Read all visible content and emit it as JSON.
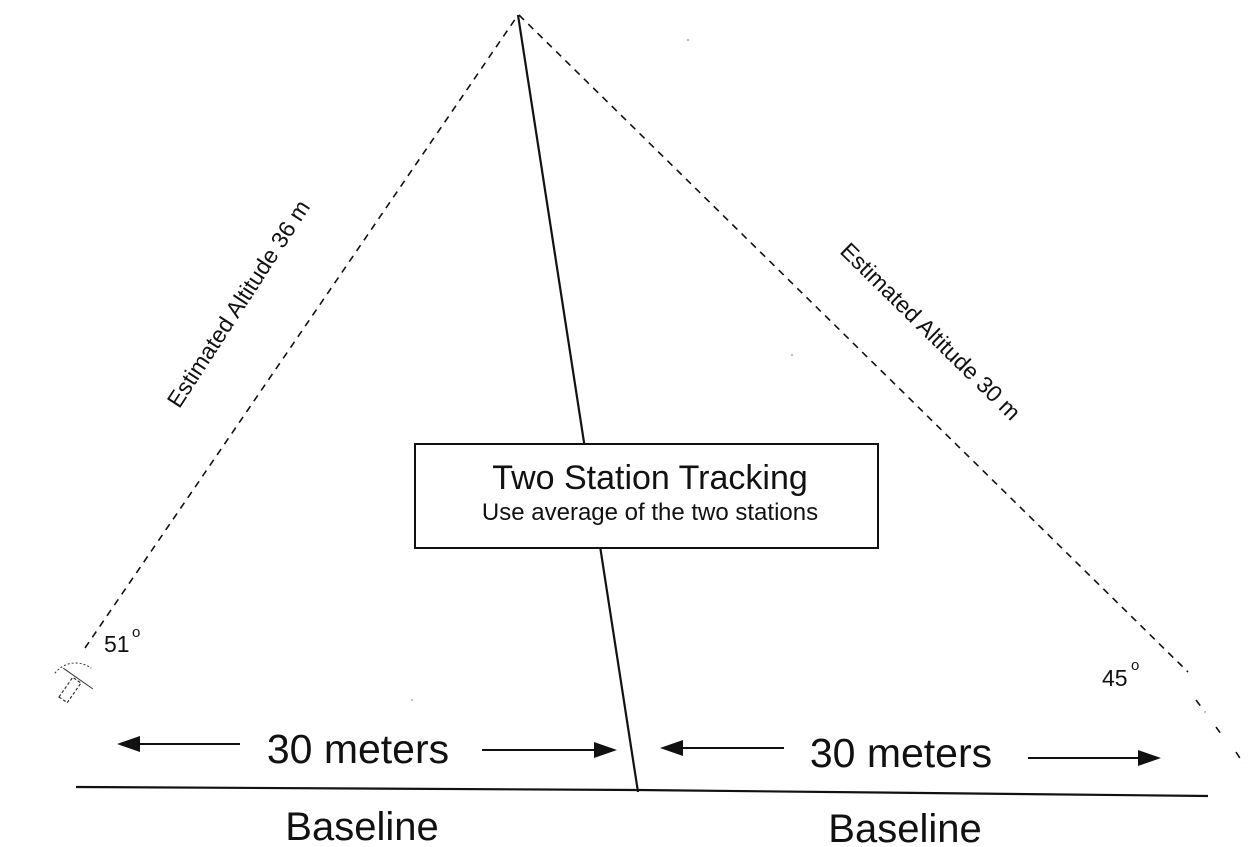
{
  "left_station": {
    "altitude_label": "Estimated Altitude 36 m",
    "angle": "51",
    "angle_unit": "o",
    "distance_label": "30 meters",
    "baseline_label": "Baseline"
  },
  "right_station": {
    "altitude_label": "Estimated Altitude 30 m",
    "angle": "45",
    "angle_unit": "o",
    "distance_label": "30 meters",
    "baseline_label": "Baseline"
  },
  "info_box": {
    "title": "Two Station Tracking",
    "subtitle": "Use average of the two stations"
  }
}
